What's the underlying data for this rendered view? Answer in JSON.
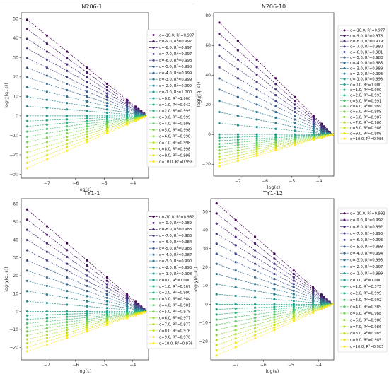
{
  "chart_data": [
    {
      "type": "line",
      "title": "N206-1",
      "xlabel": "log(ε)",
      "ylabel": "log(χ(q, ε))",
      "xlim": [
        -7.9,
        -3.45
      ],
      "ylim": [
        -32,
        53
      ],
      "x_ticks": [
        -7,
        -6,
        -5,
        -4
      ],
      "y_ticks": [
        -30,
        -20,
        -10,
        0,
        10,
        20,
        30,
        40,
        50
      ],
      "x": [
        -7.69,
        -7.0,
        -6.3,
        -5.6,
        -4.9,
        -4.2,
        -3.9,
        -3.8,
        -3.7,
        -3.6,
        -3.5
      ],
      "slope_at_q_minus10": -11.8,
      "slope_at_q_plus10": 6.4,
      "end": [
        -3.5,
        0
      ],
      "grid": false,
      "legend": "right",
      "series": [
        {
          "q": "-10.0",
          "r2": "0.997"
        },
        {
          "q": "-9.0",
          "r2": "0.997"
        },
        {
          "q": "-8.0",
          "r2": "0.997"
        },
        {
          "q": "-7.0",
          "r2": "0.997"
        },
        {
          "q": "-6.0",
          "r2": "0.998"
        },
        {
          "q": "-5.0",
          "r2": "0.998"
        },
        {
          "q": "-4.0",
          "r2": "0.999"
        },
        {
          "q": "-3.0",
          "r2": "0.999"
        },
        {
          "q": "-2.0",
          "r2": "0.999"
        },
        {
          "q": "-1.0",
          "r2": "1.000"
        },
        {
          "q": "0.0",
          "r2": "1.000"
        },
        {
          "q": "1.0",
          "r2": "0.042"
        },
        {
          "q": "2.0",
          "r2": "0.999"
        },
        {
          "q": "3.0",
          "r2": "0.999"
        },
        {
          "q": "4.0",
          "r2": "0.998"
        },
        {
          "q": "5.0",
          "r2": "0.998"
        },
        {
          "q": "6.0",
          "r2": "0.998"
        },
        {
          "q": "7.0",
          "r2": "0.998"
        },
        {
          "q": "8.0",
          "r2": "0.998"
        },
        {
          "q": "9.0",
          "r2": "0.998"
        },
        {
          "q": "10.0",
          "r2": "0.998"
        }
      ]
    },
    {
      "type": "line",
      "title": "N206-10",
      "xlabel": "log(ε)",
      "ylabel": "log(χ(q, ε))",
      "xlim": [
        -7.9,
        -3.45
      ],
      "ylim": [
        -28,
        82
      ],
      "x_ticks": [
        -7,
        -6,
        -5,
        -4
      ],
      "y_ticks": [
        -20,
        0,
        20,
        40,
        60,
        80
      ],
      "x": [
        -7.69,
        -7.0,
        -6.3,
        -5.6,
        -4.9,
        -4.2,
        -3.9,
        -3.8,
        -3.7,
        -3.6,
        -3.5
      ],
      "slope_at_q_minus10": -18.0,
      "slope_at_q_plus10": 5.1,
      "end": [
        -3.5,
        0
      ],
      "grid": false,
      "legend": "right",
      "series": [
        {
          "q": "-10.0",
          "r2": "0.977"
        },
        {
          "q": "-9.0",
          "r2": "0.978"
        },
        {
          "q": "-8.0",
          "r2": "0.979"
        },
        {
          "q": "-7.0",
          "r2": "0.980"
        },
        {
          "q": "-6.0",
          "r2": "0.981"
        },
        {
          "q": "-5.0",
          "r2": "0.983"
        },
        {
          "q": "-4.0",
          "r2": "0.985"
        },
        {
          "q": "-3.0",
          "r2": "0.989"
        },
        {
          "q": "-2.0",
          "r2": "0.993"
        },
        {
          "q": "-1.0",
          "r2": "0.998"
        },
        {
          "q": "0.0",
          "r2": "1.000"
        },
        {
          "q": "1.0",
          "r2": "0.000"
        },
        {
          "q": "2.0",
          "r2": "0.993"
        },
        {
          "q": "3.0",
          "r2": "0.991"
        },
        {
          "q": "4.0",
          "r2": "0.989"
        },
        {
          "q": "5.0",
          "r2": "0.988"
        },
        {
          "q": "6.0",
          "r2": "0.987"
        },
        {
          "q": "7.0",
          "r2": "0.986"
        },
        {
          "q": "8.0",
          "r2": "0.986"
        },
        {
          "q": "9.0",
          "r2": "0.986"
        },
        {
          "q": "10.0",
          "r2": "0.986"
        }
      ]
    },
    {
      "type": "line",
      "title": "TY1-1",
      "xlabel": "log(ε)",
      "ylabel": "log(χ(q, ε))",
      "xlim": [
        -7.9,
        -3.45
      ],
      "ylim": [
        -27,
        63
      ],
      "x_ticks": [
        -7,
        -6,
        -5,
        -4
      ],
      "y_ticks": [
        -20,
        -10,
        0,
        10,
        20,
        30,
        40,
        50,
        60
      ],
      "x": [
        -7.69,
        -7.0,
        -6.3,
        -5.6,
        -4.9,
        -4.2,
        -3.9,
        -3.8,
        -3.7,
        -3.6,
        -3.5
      ],
      "slope_at_q_minus10": -13.6,
      "slope_at_q_plus10": 5.3,
      "end": [
        -3.5,
        0
      ],
      "grid": false,
      "legend": "right",
      "series": [
        {
          "q": "-10.0",
          "r2": "0.982"
        },
        {
          "q": "-9.0",
          "r2": "0.982"
        },
        {
          "q": "-8.0",
          "r2": "0.983"
        },
        {
          "q": "-7.0",
          "r2": "0.983"
        },
        {
          "q": "-6.0",
          "r2": "0.984"
        },
        {
          "q": "-5.0",
          "r2": "0.985"
        },
        {
          "q": "-4.0",
          "r2": "0.987"
        },
        {
          "q": "-3.0",
          "r2": "0.990"
        },
        {
          "q": "-2.0",
          "r2": "0.993"
        },
        {
          "q": "-1.0",
          "r2": "0.998"
        },
        {
          "q": "0.0",
          "r2": "1.000"
        },
        {
          "q": "1.0",
          "r2": "0.167"
        },
        {
          "q": "2.0",
          "r2": "0.990"
        },
        {
          "q": "3.0",
          "r2": "0.984"
        },
        {
          "q": "4.0",
          "r2": "0.981"
        },
        {
          "q": "5.0",
          "r2": "0.978"
        },
        {
          "q": "6.0",
          "r2": "0.977"
        },
        {
          "q": "7.0",
          "r2": "0.977"
        },
        {
          "q": "8.0",
          "r2": "0.976"
        },
        {
          "q": "9.0",
          "r2": "0.976"
        },
        {
          "q": "10.0",
          "r2": "0.976"
        }
      ]
    },
    {
      "type": "line",
      "title": "TY1-12",
      "xlabel": "log(ε)",
      "ylabel": "log(χ(q, ε))",
      "xlim": [
        -7.9,
        -3.45
      ],
      "ylim": [
        -30,
        57
      ],
      "x_ticks": [
        -7,
        -6,
        -5,
        -4
      ],
      "y_ticks": [
        -20,
        -10,
        0,
        10,
        20,
        30,
        40,
        50
      ],
      "x": [
        -7.69,
        -7.0,
        -6.3,
        -5.6,
        -4.9,
        -4.2,
        -3.9,
        -3.8,
        -3.7,
        -3.6,
        -3.5
      ],
      "slope_at_q_minus10": -13.0,
      "slope_at_q_plus10": 6.6,
      "end": [
        -3.5,
        0
      ],
      "grid": false,
      "legend": "right",
      "series": [
        {
          "q": "-10.0",
          "r2": "0.992"
        },
        {
          "q": "-9.0",
          "r2": "0.992"
        },
        {
          "q": "-8.0",
          "r2": "0.992"
        },
        {
          "q": "-7.0",
          "r2": "0.993"
        },
        {
          "q": "-6.0",
          "r2": "0.993"
        },
        {
          "q": "-5.0",
          "r2": "0.993"
        },
        {
          "q": "-4.0",
          "r2": "0.994"
        },
        {
          "q": "-3.0",
          "r2": "0.995"
        },
        {
          "q": "-2.0",
          "r2": "0.997"
        },
        {
          "q": "-1.0",
          "r2": "0.999"
        },
        {
          "q": "0.0",
          "r2": "1.000"
        },
        {
          "q": "1.0",
          "r2": "0.375"
        },
        {
          "q": "2.0",
          "r2": "0.995"
        },
        {
          "q": "3.0",
          "r2": "0.992"
        },
        {
          "q": "4.0",
          "r2": "0.989"
        },
        {
          "q": "5.0",
          "r2": "0.988"
        },
        {
          "q": "6.0",
          "r2": "0.986"
        },
        {
          "q": "7.0",
          "r2": "0.986"
        },
        {
          "q": "8.0",
          "r2": "0.985"
        },
        {
          "q": "9.0",
          "r2": "0.985"
        },
        {
          "q": "10.0",
          "r2": "0.985"
        }
      ]
    }
  ],
  "colormap": [
    "#440154",
    "#46085c",
    "#471063",
    "#48186a",
    "#482071",
    "#472777",
    "#472d7b",
    "#46337e",
    "#453882",
    "#433e85",
    "#404688",
    "#3e4c8a",
    "#3b528b",
    "#38598c",
    "#355f8d",
    "#32658e",
    "#306a8e",
    "#2d708e",
    "#2b758e",
    "#297a8e",
    "#27808e",
    "#25858e",
    "#238a8d",
    "#21918c",
    "#20968b",
    "#1f9a8a",
    "#1fa088",
    "#21a585",
    "#24aa83",
    "#28ae80",
    "#2eb37c",
    "#35b779",
    "#3dbc74",
    "#46c06f",
    "#50c46a",
    "#5ac864",
    "#65cb5e",
    "#70cf57",
    "#7ad151",
    "#86d549",
    "#90d743",
    "#9bd93c",
    "#a8db34",
    "#b2dd2d",
    "#bddf26",
    "#c8e020",
    "#d2e21b",
    "#dde318",
    "#e7e419",
    "#f1e51d",
    "#fde725"
  ]
}
